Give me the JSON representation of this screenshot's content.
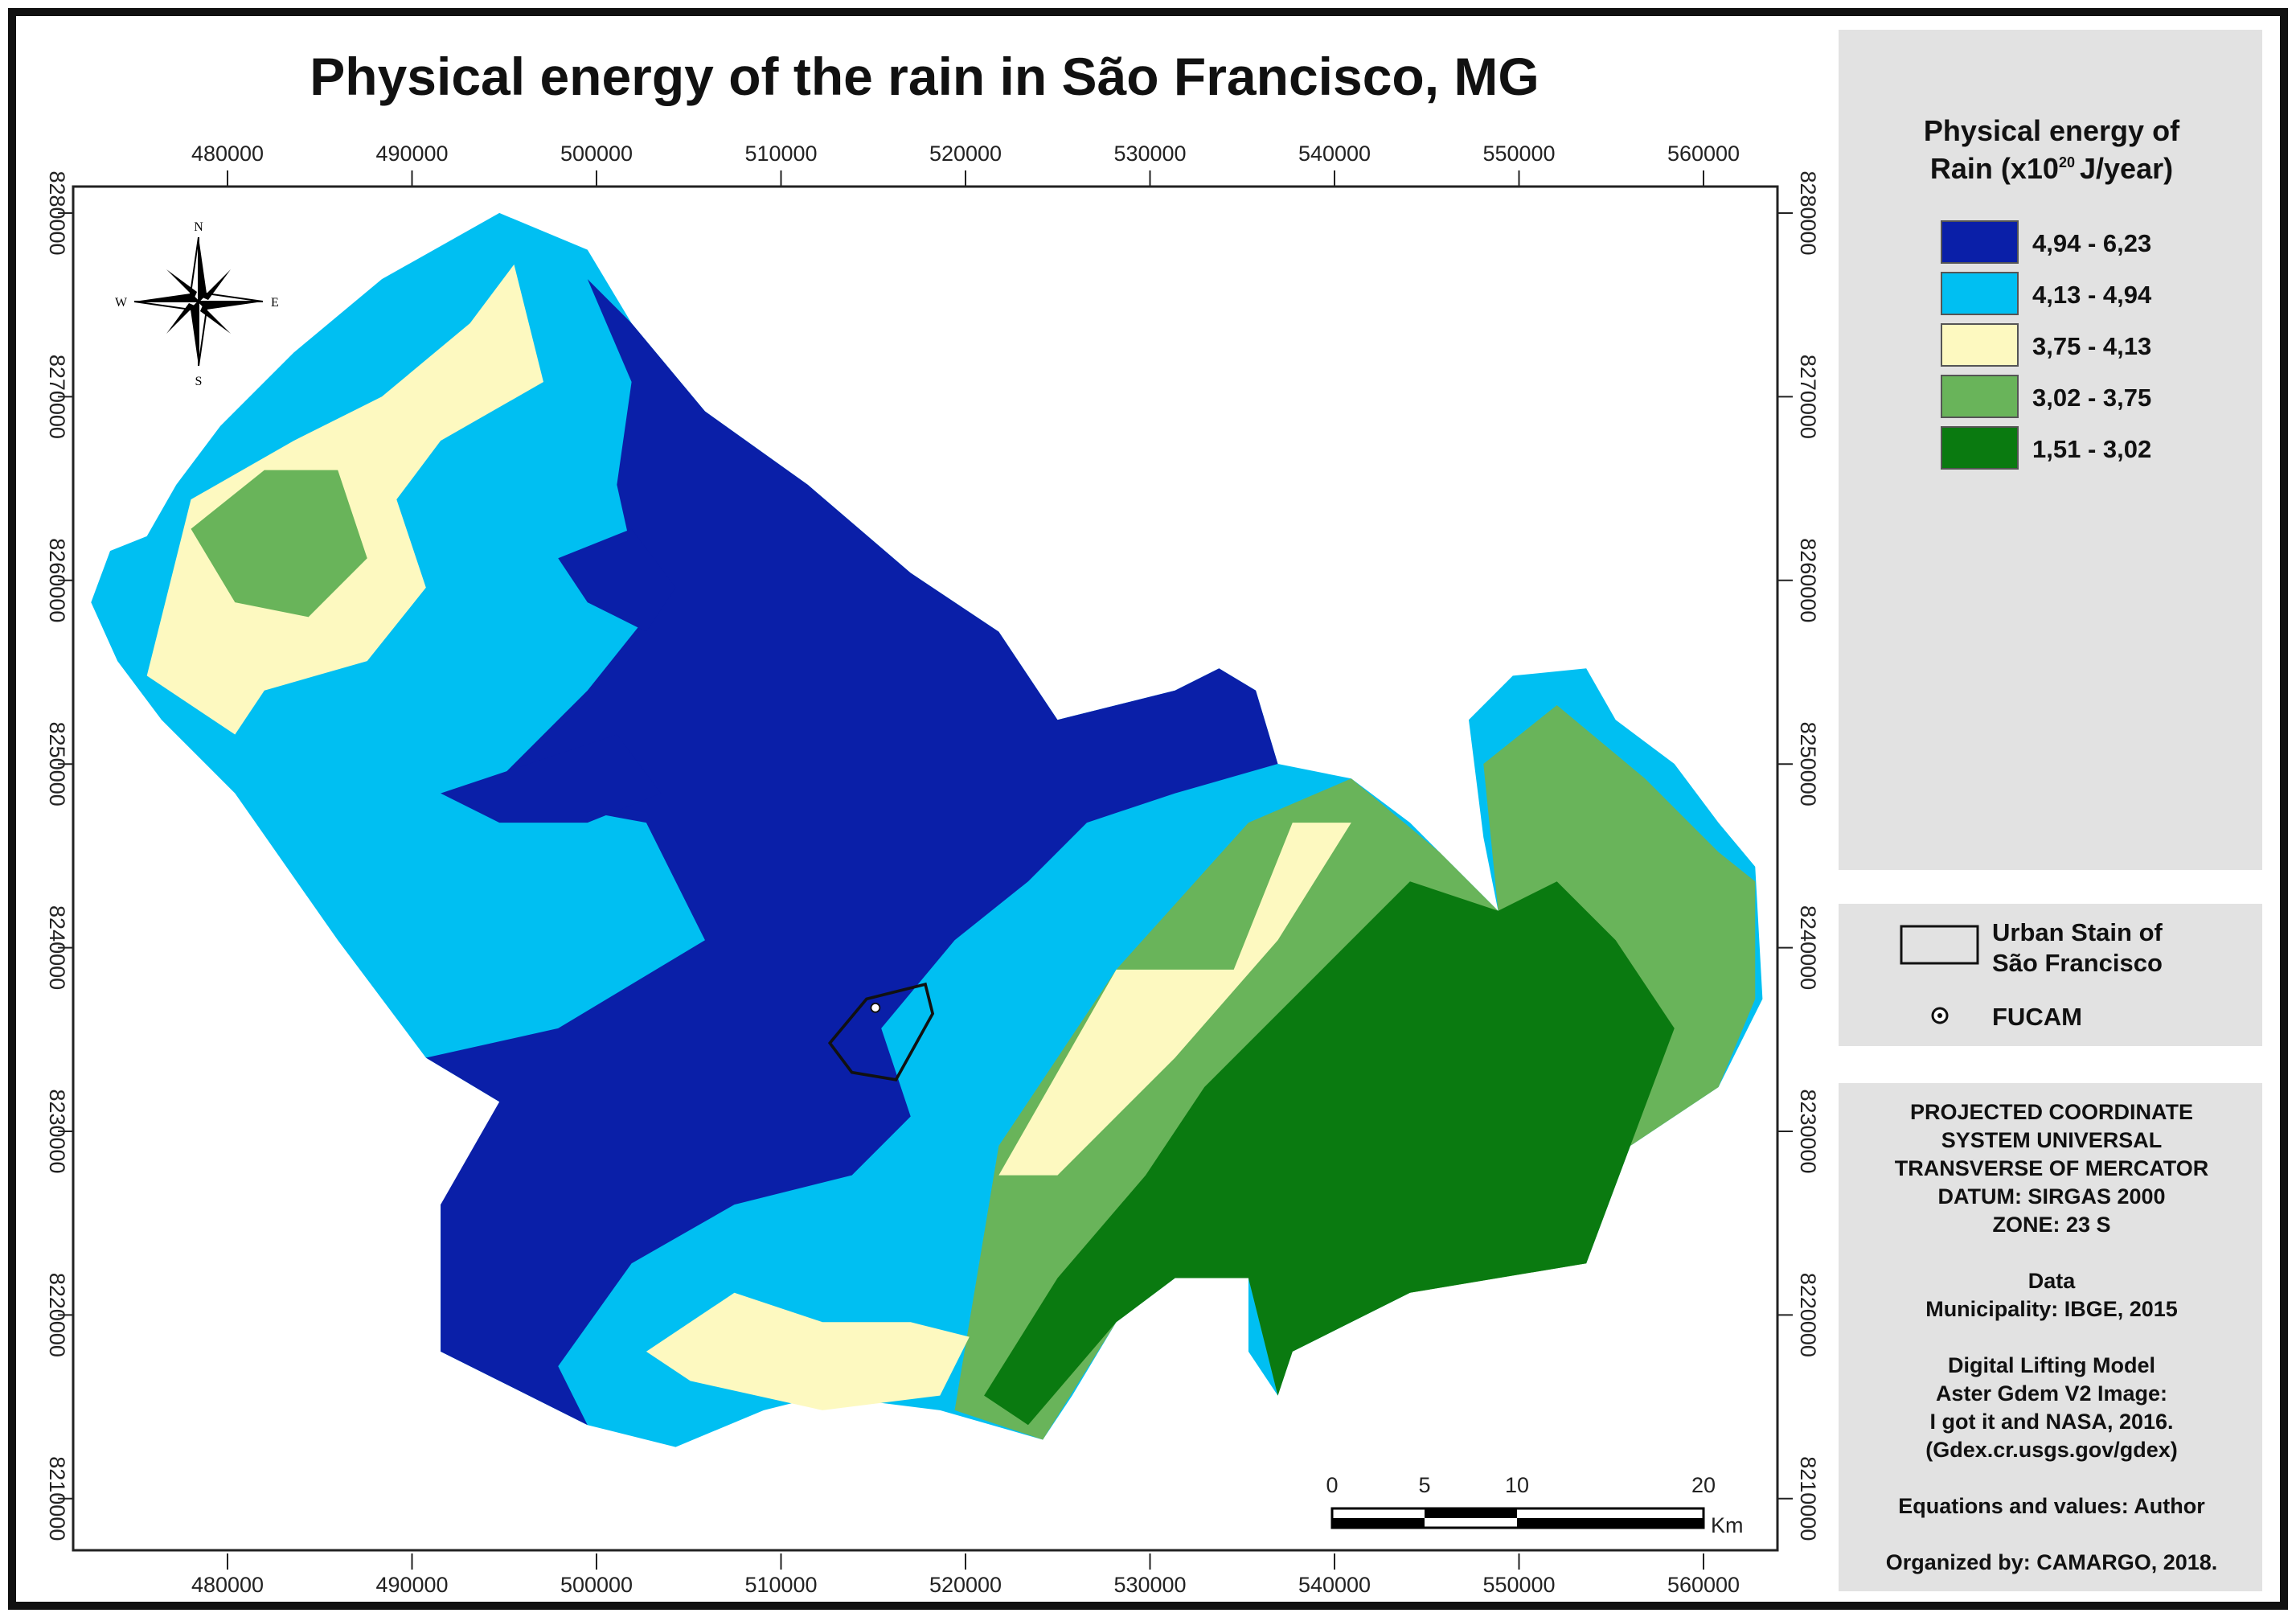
{
  "title": "Physical energy of the rain in São Francisco, MG",
  "axes": {
    "x_ticks": [
      "480000",
      "490000",
      "500000",
      "510000",
      "520000",
      "530000",
      "540000",
      "550000",
      "560000"
    ],
    "y_ticks": [
      "8280000",
      "8270000",
      "8260000",
      "8250000",
      "8240000",
      "8230000",
      "8220000",
      "8210000"
    ]
  },
  "legend": {
    "title_line1": "Physical energy of",
    "title_line2_pre": "Rain (x10",
    "title_sup": "20",
    "title_line2_post": "J/year)",
    "classes": [
      {
        "label": "4,94 - 6,23",
        "color": "#0a1fa8"
      },
      {
        "label": "4,13 - 4,94",
        "color": "#00bff2"
      },
      {
        "label": "3,75 - 4,13",
        "color": "#fdf9c0"
      },
      {
        "label": "3,02 - 3,75",
        "color": "#69b45a"
      },
      {
        "label": "1,51 - 3,02",
        "color": "#0a7a10"
      }
    ]
  },
  "features": {
    "urban_line1": "Urban Stain of",
    "urban_line2": "São Francisco",
    "point_label": "FUCAM"
  },
  "info": {
    "lines1": [
      "PROJECTED COORDINATE",
      "SYSTEM UNIVERSAL",
      "TRANSVERSE OF MERCATOR",
      "DATUM: SIRGAS 2000",
      "ZONE: 23 S"
    ],
    "lines2": [
      "Data",
      "Municipality: IBGE, 2015"
    ],
    "lines3": [
      "Digital Lifting Model",
      "Aster Gdem V2 Image:",
      "I got it and NASA, 2016.",
      "(Gdex.cr.usgs.gov/gdex)"
    ],
    "line4": "Equations and values: Author",
    "line5": "Organized by: CAMARGO, 2018."
  },
  "scale_bar": {
    "labels": [
      "0",
      "5",
      "10",
      "20"
    ],
    "unit": "Km"
  },
  "north_arrow": {
    "n": "N",
    "s": "S",
    "e": "E",
    "w": "W"
  }
}
